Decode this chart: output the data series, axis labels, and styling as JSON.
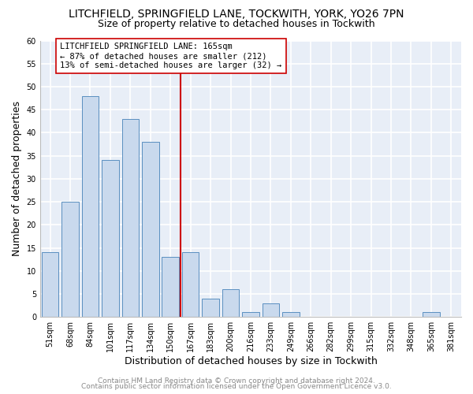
{
  "title": "LITCHFIELD, SPRINGFIELD LANE, TOCKWITH, YORK, YO26 7PN",
  "subtitle": "Size of property relative to detached houses in Tockwith",
  "xlabel": "Distribution of detached houses by size in Tockwith",
  "ylabel": "Number of detached properties",
  "bar_labels": [
    "51sqm",
    "68sqm",
    "84sqm",
    "101sqm",
    "117sqm",
    "134sqm",
    "150sqm",
    "167sqm",
    "183sqm",
    "200sqm",
    "216sqm",
    "233sqm",
    "249sqm",
    "266sqm",
    "282sqm",
    "299sqm",
    "315sqm",
    "332sqm",
    "348sqm",
    "365sqm",
    "381sqm"
  ],
  "bar_heights": [
    14,
    25,
    48,
    34,
    43,
    38,
    13,
    14,
    4,
    6,
    1,
    3,
    1,
    0,
    0,
    0,
    0,
    0,
    0,
    1,
    0
  ],
  "bar_color": "#c9d9ed",
  "bar_edge_color": "#5a8fc0",
  "vline_color": "#cc0000",
  "annotation_line1": "LITCHFIELD SPRINGFIELD LANE: 165sqm",
  "annotation_line2": "← 87% of detached houses are smaller (212)",
  "annotation_line3": "13% of semi-detached houses are larger (32) →",
  "annotation_box_color": "white",
  "annotation_box_edge": "#cc0000",
  "ylim": [
    0,
    60
  ],
  "yticks": [
    0,
    5,
    10,
    15,
    20,
    25,
    30,
    35,
    40,
    45,
    50,
    55,
    60
  ],
  "footer_line1": "Contains HM Land Registry data © Crown copyright and database right 2024.",
  "footer_line2": "Contains public sector information licensed under the Open Government Licence v3.0.",
  "plot_bg_color": "#e8eef7",
  "fig_bg_color": "#ffffff",
  "title_fontsize": 10,
  "subtitle_fontsize": 9,
  "tick_fontsize": 7,
  "label_fontsize": 9,
  "annotation_fontsize": 7.5,
  "footer_fontsize": 6.5
}
